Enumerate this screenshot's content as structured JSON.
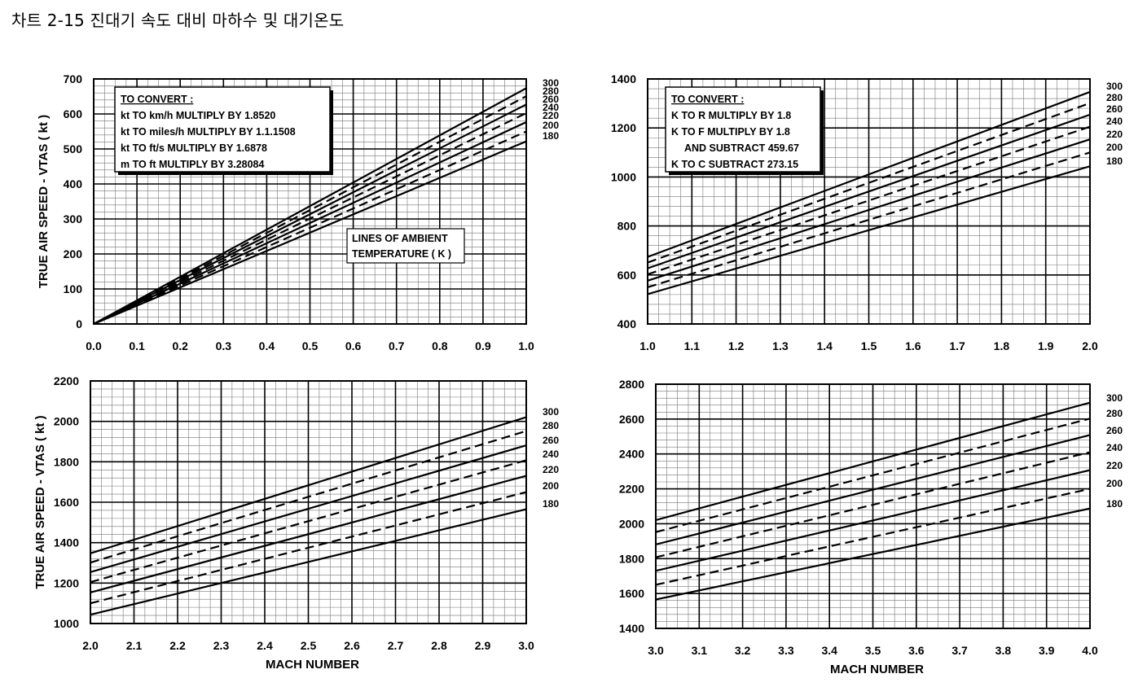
{
  "page_title": "차트 2-15 진대기 속도 대비 마하수 및 대기온도",
  "chart_data": [
    {
      "type": "line",
      "title": "",
      "xlabel": "",
      "ylabel": "TRUE AIR SPEED - VTAS ( kt )",
      "xlim": [
        0.0,
        1.0
      ],
      "ylim": [
        0,
        700
      ],
      "x_ticks": [
        "0.0",
        "0.1",
        "0.2",
        "0.3",
        "0.4",
        "0.5",
        "0.6",
        "0.7",
        "0.8",
        "0.9",
        "1.0"
      ],
      "y_ticks": [
        "0",
        "100",
        "200",
        "300",
        "400",
        "500",
        "600",
        "700"
      ],
      "grid": true,
      "series": [
        {
          "name": "300",
          "dashed": false,
          "x": [
            0.0,
            1.0
          ],
          "values": [
            0,
            673.6
          ]
        },
        {
          "name": "280",
          "dashed": true,
          "x": [
            0.0,
            1.0
          ],
          "values": [
            0,
            650.7
          ]
        },
        {
          "name": "260",
          "dashed": false,
          "x": [
            0.0,
            1.0
          ],
          "values": [
            0,
            627.1
          ]
        },
        {
          "name": "240",
          "dashed": true,
          "x": [
            0.0,
            1.0
          ],
          "values": [
            0,
            602.5
          ]
        },
        {
          "name": "220",
          "dashed": false,
          "x": [
            0.0,
            1.0
          ],
          "values": [
            0,
            576.8
          ]
        },
        {
          "name": "200",
          "dashed": true,
          "x": [
            0.0,
            1.0
          ],
          "values": [
            0,
            550.0
          ]
        },
        {
          "name": "180",
          "dashed": false,
          "x": [
            0.0,
            1.0
          ],
          "values": [
            0,
            521.8
          ]
        }
      ],
      "note": [
        "TO CONVERT :",
        "kt TO km/h MULTIPLY BY 1.8520",
        "kt TO miles/h MULTIPLY BY 1.1.1508",
        "kt TO ft/s MULTIPLY BY 1.6878",
        "m TO ft MULTIPLY BY 3.28084"
      ],
      "annotation": [
        "LINES OF AMBIENT",
        "TEMPERATURE ( K )"
      ]
    },
    {
      "type": "line",
      "title": "",
      "xlabel": "",
      "ylabel": "",
      "xlim": [
        1.0,
        2.0
      ],
      "ylim": [
        400,
        1400
      ],
      "x_ticks": [
        "1.0",
        "1.1",
        "1.2",
        "1.3",
        "1.4",
        "1.5",
        "1.6",
        "1.7",
        "1.8",
        "1.9",
        "2.0"
      ],
      "y_ticks": [
        "400",
        "600",
        "800",
        "1000",
        "1200",
        "1400"
      ],
      "grid": true,
      "series": [
        {
          "name": "300",
          "dashed": false,
          "x": [
            1.0,
            2.0
          ],
          "values": [
            673.6,
            1347.2
          ]
        },
        {
          "name": "280",
          "dashed": true,
          "x": [
            1.0,
            2.0
          ],
          "values": [
            650.7,
            1301.4
          ]
        },
        {
          "name": "260",
          "dashed": false,
          "x": [
            1.0,
            2.0
          ],
          "values": [
            627.1,
            1254.2
          ]
        },
        {
          "name": "240",
          "dashed": true,
          "x": [
            1.0,
            2.0
          ],
          "values": [
            602.5,
            1205.0
          ]
        },
        {
          "name": "220",
          "dashed": false,
          "x": [
            1.0,
            2.0
          ],
          "values": [
            576.8,
            1153.6
          ]
        },
        {
          "name": "200",
          "dashed": true,
          "x": [
            1.0,
            2.0
          ],
          "values": [
            550.0,
            1100.0
          ]
        },
        {
          "name": "180",
          "dashed": false,
          "x": [
            1.0,
            2.0
          ],
          "values": [
            521.8,
            1043.6
          ]
        }
      ],
      "note": [
        "TO CONVERT :",
        "K TO R MULTIPLY BY 1.8",
        "K TO F MULTIPLY BY 1.8",
        "AND SUBTRACT 459.67",
        "K TO C SUBTRACT 273.15"
      ]
    },
    {
      "type": "line",
      "title": "",
      "xlabel": "MACH NUMBER",
      "ylabel": "TRUE AIR SPEED - VTAS ( kt )",
      "xlim": [
        2.0,
        3.0
      ],
      "ylim": [
        1000,
        2200
      ],
      "x_ticks": [
        "2.0",
        "2.1",
        "2.2",
        "2.3",
        "2.4",
        "2.5",
        "2.6",
        "2.7",
        "2.8",
        "2.9",
        "3.0"
      ],
      "y_ticks": [
        "1000",
        "1200",
        "1400",
        "1600",
        "1800",
        "2000",
        "2200"
      ],
      "grid": true,
      "series": [
        {
          "name": "300",
          "dashed": false,
          "x": [
            2.0,
            3.0
          ],
          "values": [
            1347.2,
            2020.8
          ]
        },
        {
          "name": "280",
          "dashed": true,
          "x": [
            2.0,
            3.0
          ],
          "values": [
            1301.4,
            1952.1
          ]
        },
        {
          "name": "260",
          "dashed": false,
          "x": [
            2.0,
            3.0
          ],
          "values": [
            1254.2,
            1881.3
          ]
        },
        {
          "name": "240",
          "dashed": true,
          "x": [
            2.0,
            3.0
          ],
          "values": [
            1205.0,
            1807.5
          ]
        },
        {
          "name": "220",
          "dashed": false,
          "x": [
            2.0,
            3.0
          ],
          "values": [
            1153.6,
            1730.4
          ]
        },
        {
          "name": "200",
          "dashed": true,
          "x": [
            2.0,
            3.0
          ],
          "values": [
            1100.0,
            1650.0
          ]
        },
        {
          "name": "180",
          "dashed": false,
          "x": [
            2.0,
            3.0
          ],
          "values": [
            1043.6,
            1565.4
          ]
        }
      ]
    },
    {
      "type": "line",
      "title": "",
      "xlabel": "MACH NUMBER",
      "ylabel": "",
      "xlim": [
        3.0,
        4.0
      ],
      "ylim": [
        1400,
        2800
      ],
      "x_ticks": [
        "3.0",
        "3.1",
        "3.2",
        "3.3",
        "3.4",
        "3.5",
        "3.6",
        "3.7",
        "3.8",
        "3.9",
        "4.0"
      ],
      "y_ticks": [
        "1400",
        "1600",
        "1800",
        "2000",
        "2200",
        "2400",
        "2600",
        "2800"
      ],
      "grid": true,
      "series": [
        {
          "name": "300",
          "dashed": false,
          "x": [
            3.0,
            4.0
          ],
          "values": [
            2020.8,
            2694.4
          ]
        },
        {
          "name": "280",
          "dashed": true,
          "x": [
            3.0,
            4.0
          ],
          "values": [
            1952.1,
            2602.8
          ]
        },
        {
          "name": "260",
          "dashed": false,
          "x": [
            3.0,
            4.0
          ],
          "values": [
            1881.3,
            2508.4
          ]
        },
        {
          "name": "240",
          "dashed": true,
          "x": [
            3.0,
            4.0
          ],
          "values": [
            1807.5,
            2410.0
          ]
        },
        {
          "name": "220",
          "dashed": false,
          "x": [
            3.0,
            4.0
          ],
          "values": [
            1730.4,
            2307.2
          ]
        },
        {
          "name": "200",
          "dashed": true,
          "x": [
            3.0,
            4.0
          ],
          "values": [
            1650.0,
            2200.0
          ]
        },
        {
          "name": "180",
          "dashed": false,
          "x": [
            3.0,
            4.0
          ],
          "values": [
            1565.4,
            2087.2
          ]
        }
      ]
    }
  ]
}
